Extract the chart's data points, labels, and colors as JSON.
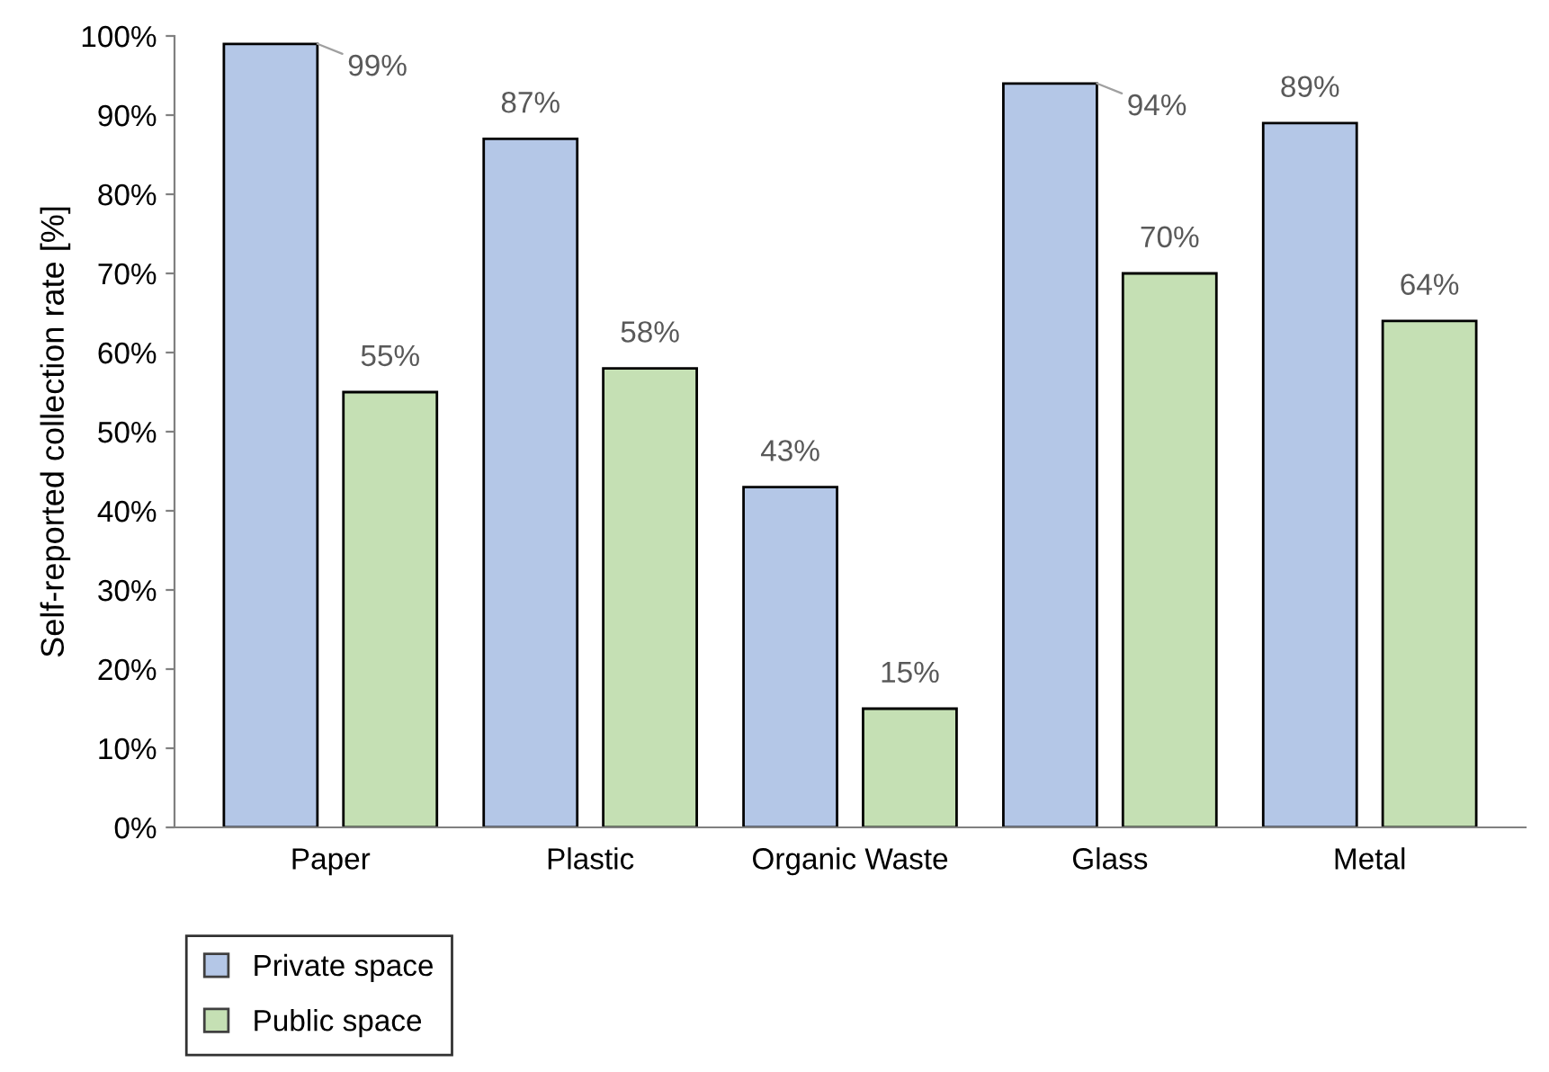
{
  "chart_data": {
    "type": "bar",
    "ylabel": "Self-reported collection rate [%]",
    "categories": [
      "Paper",
      "Plastic",
      "Organic Waste",
      "Glass",
      "Metal"
    ],
    "series": [
      {
        "name": "Private space",
        "color": "#b4c7e7",
        "values": [
          99,
          87,
          43,
          94,
          89
        ],
        "value_labels": [
          "99%",
          "87%",
          "43%",
          "94%",
          "89%"
        ]
      },
      {
        "name": "Public space",
        "color": "#c5e0b4",
        "values": [
          55,
          58,
          15,
          70,
          64
        ],
        "value_labels": [
          "55%",
          "58%",
          "15%",
          "70%",
          "64%"
        ]
      }
    ],
    "ylim": [
      0,
      100
    ],
    "yticks": [
      {
        "value": 0,
        "label": "0%"
      },
      {
        "value": 10,
        "label": "10%"
      },
      {
        "value": 20,
        "label": "20%"
      },
      {
        "value": 30,
        "label": "30%"
      },
      {
        "value": 40,
        "label": "40%"
      },
      {
        "value": 50,
        "label": "50%"
      },
      {
        "value": 60,
        "label": "60%"
      },
      {
        "value": 70,
        "label": "70%"
      },
      {
        "value": 80,
        "label": "80%"
      },
      {
        "value": 90,
        "label": "90%"
      },
      {
        "value": 100,
        "label": "100%"
      }
    ],
    "grid": false,
    "legend": "bottom left"
  }
}
